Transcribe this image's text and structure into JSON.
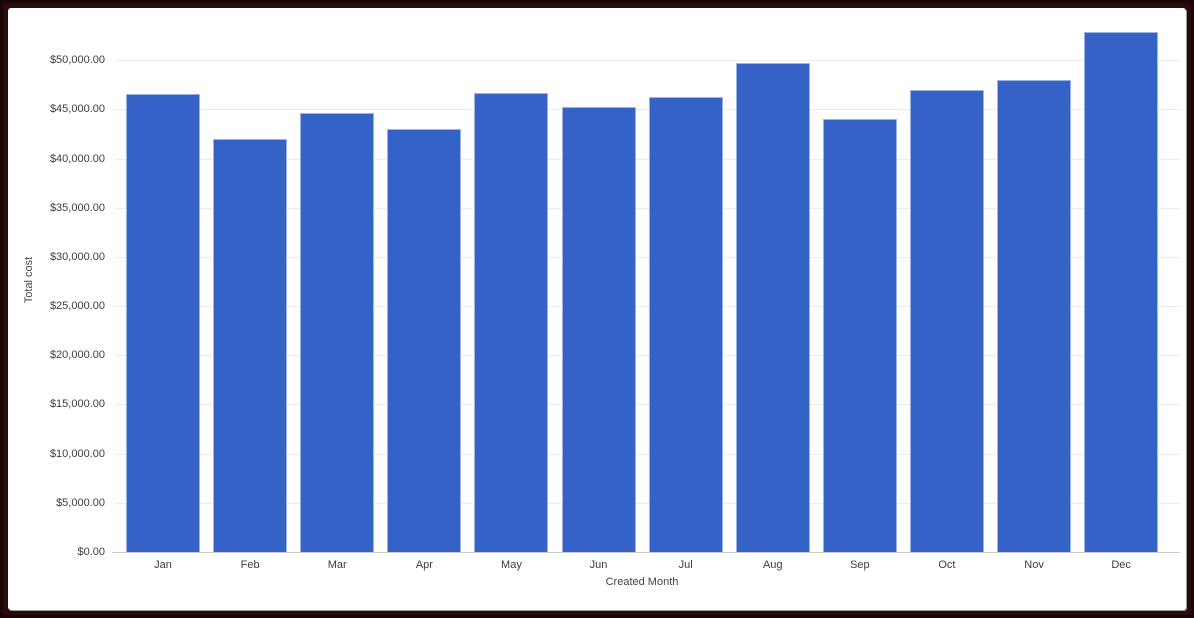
{
  "chart_data": {
    "type": "bar",
    "title": "",
    "xlabel": "Created Month",
    "ylabel": "Total cost",
    "categories": [
      "Jan",
      "Feb",
      "Mar",
      "Apr",
      "May",
      "Jun",
      "Jul",
      "Aug",
      "Sep",
      "Oct",
      "Nov",
      "Dec"
    ],
    "values": [
      46600,
      42000,
      44600,
      43000,
      46700,
      45200,
      46300,
      49700,
      44000,
      47000,
      48000,
      52900
    ],
    "ylim": [
      0,
      55000
    ],
    "y_ticks": [
      {
        "value": 0,
        "label": "$0.00"
      },
      {
        "value": 5000,
        "label": "$5,000.00"
      },
      {
        "value": 10000,
        "label": "$10,000.00"
      },
      {
        "value": 15000,
        "label": "$15,000.00"
      },
      {
        "value": 20000,
        "label": "$20,000.00"
      },
      {
        "value": 25000,
        "label": "$25,000.00"
      },
      {
        "value": 30000,
        "label": "$30,000.00"
      },
      {
        "value": 35000,
        "label": "$35,000.00"
      },
      {
        "value": 40000,
        "label": "$40,000.00"
      },
      {
        "value": 45000,
        "label": "$45,000.00"
      },
      {
        "value": 50000,
        "label": "$50,000.00"
      }
    ],
    "legend": "none",
    "grid": true
  },
  "colors": {
    "bar_fill": "#3562c7",
    "bar_stroke": "#9db3e6",
    "gridline": "#ebebeb",
    "axis_line": "#c9c9c9",
    "tick_text": "#3c3c3c",
    "axis_title_text": "#444444",
    "frame": "#2d0a0a",
    "panel_bg": "#ffffff"
  }
}
